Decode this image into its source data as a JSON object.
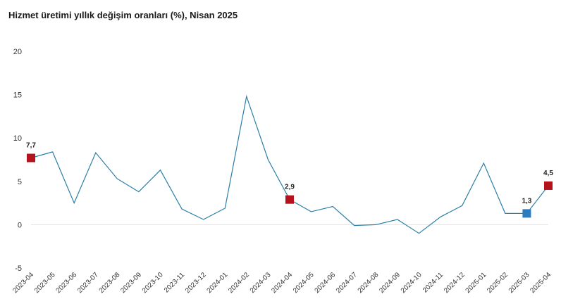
{
  "chart_data": {
    "type": "line",
    "title": "Hizmet üretimi yıllık değişim oranları (%), Nisan 2025",
    "xlabel": "",
    "ylabel": "",
    "ylim": [
      -5,
      20
    ],
    "yticks": [
      "20",
      "15",
      "10",
      "5",
      "0",
      "-5"
    ],
    "categories": [
      "2023-04",
      "2023-05",
      "2023-06",
      "2023-07",
      "2023-08",
      "2023-09",
      "2023-10",
      "2023-11",
      "2023-12",
      "2024-01",
      "2024-02",
      "2024-03",
      "2024-04",
      "2024-05",
      "2024-06",
      "2024-07",
      "2024-08",
      "2024-09",
      "2024-10",
      "2024-11",
      "2024-12",
      "2025-01",
      "2025-02",
      "2025-03",
      "2025-04"
    ],
    "series": [
      {
        "values": [
          7.7,
          8.4,
          2.5,
          8.3,
          5.3,
          3.8,
          6.3,
          1.8,
          0.6,
          1.9,
          14.8,
          7.5,
          2.9,
          1.5,
          2.1,
          -0.1,
          0.0,
          0.6,
          -1.0,
          0.9,
          2.2,
          7.1,
          1.3,
          1.3,
          4.5
        ],
        "color": "#2a7fa6"
      }
    ],
    "markers": [
      {
        "index": 0,
        "label": "7,7",
        "color": "#b5121b"
      },
      {
        "index": 12,
        "label": "2,9",
        "color": "#b5121b"
      },
      {
        "index": 23,
        "label": "1,3",
        "color": "#2b7bbf"
      },
      {
        "index": 24,
        "label": "4,5",
        "color": "#b5121b"
      }
    ],
    "grid": false
  }
}
